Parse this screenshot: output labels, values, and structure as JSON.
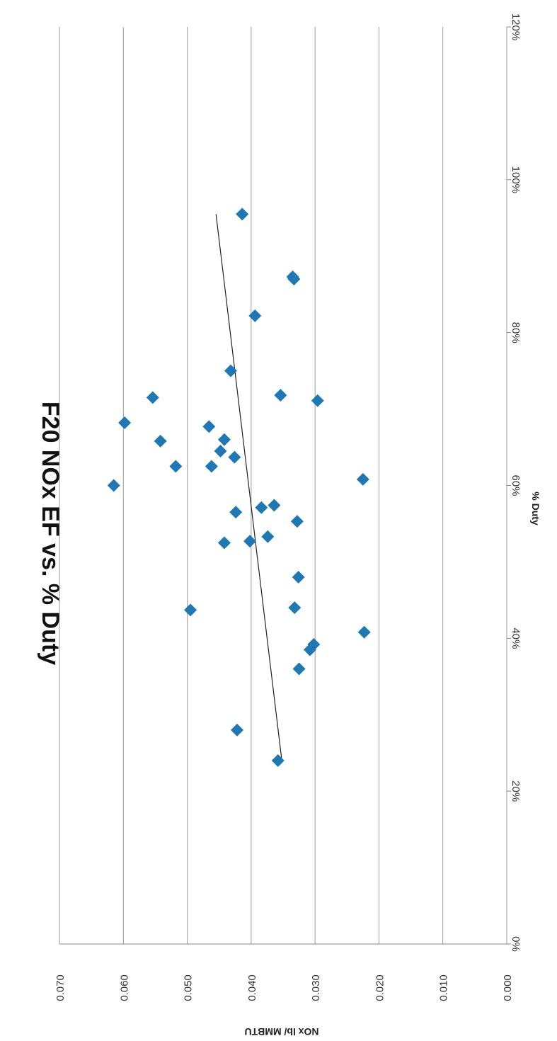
{
  "chart_data": {
    "type": "scatter",
    "title": "F20 NOx EF vs. % Duty",
    "xlabel": "% Duty",
    "ylabel": "NOx lb/ MMBTU",
    "xlim": [
      0,
      1.2
    ],
    "ylim": [
      0,
      0.07
    ],
    "x_ticks": [
      0,
      0.2,
      0.4,
      0.6,
      0.8,
      1.0,
      1.2
    ],
    "x_tick_labels": [
      "0%",
      "20%",
      "40%",
      "60%",
      "80%",
      "100%",
      "120%"
    ],
    "y_ticks": [
      0,
      0.01,
      0.02,
      0.03,
      0.04,
      0.05,
      0.06,
      0.07
    ],
    "y_tick_labels": [
      "0.000",
      "0.010",
      "0.020",
      "0.030",
      "0.040",
      "0.050",
      "0.060",
      "0.070"
    ],
    "grid": true,
    "orientation": "rotated 90° clockwise",
    "marker": "diamond",
    "marker_color": "#1f77b4",
    "trendline_color": "#222222",
    "points": [
      {
        "x": 0.24,
        "y": 0.0358
      },
      {
        "x": 0.28,
        "y": 0.0422
      },
      {
        "x": 0.36,
        "y": 0.0325
      },
      {
        "x": 0.385,
        "y": 0.0308
      },
      {
        "x": 0.392,
        "y": 0.0302
      },
      {
        "x": 0.408,
        "y": 0.0223
      },
      {
        "x": 0.437,
        "y": 0.0495
      },
      {
        "x": 0.44,
        "y": 0.0332
      },
      {
        "x": 0.48,
        "y": 0.0326
      },
      {
        "x": 0.525,
        "y": 0.0442
      },
      {
        "x": 0.527,
        "y": 0.0402
      },
      {
        "x": 0.533,
        "y": 0.0374
      },
      {
        "x": 0.553,
        "y": 0.0328
      },
      {
        "x": 0.565,
        "y": 0.0424
      },
      {
        "x": 0.571,
        "y": 0.0384
      },
      {
        "x": 0.574,
        "y": 0.0364
      },
      {
        "x": 0.6,
        "y": 0.0615
      },
      {
        "x": 0.608,
        "y": 0.0225
      },
      {
        "x": 0.625,
        "y": 0.0518
      },
      {
        "x": 0.625,
        "y": 0.0462
      },
      {
        "x": 0.637,
        "y": 0.0426
      },
      {
        "x": 0.645,
        "y": 0.0448
      },
      {
        "x": 0.658,
        "y": 0.0542
      },
      {
        "x": 0.66,
        "y": 0.0442
      },
      {
        "x": 0.677,
        "y": 0.0466
      },
      {
        "x": 0.682,
        "y": 0.0598
      },
      {
        "x": 0.711,
        "y": 0.0296
      },
      {
        "x": 0.715,
        "y": 0.0554
      },
      {
        "x": 0.718,
        "y": 0.0354
      },
      {
        "x": 0.75,
        "y": 0.0432
      },
      {
        "x": 0.822,
        "y": 0.0394
      },
      {
        "x": 0.87,
        "y": 0.0333
      },
      {
        "x": 0.873,
        "y": 0.0335
      },
      {
        "x": 0.955,
        "y": 0.0414
      }
    ],
    "trendline": {
      "x": [
        0.24,
        0.955
      ],
      "y": [
        0.0352,
        0.0455
      ]
    }
  }
}
